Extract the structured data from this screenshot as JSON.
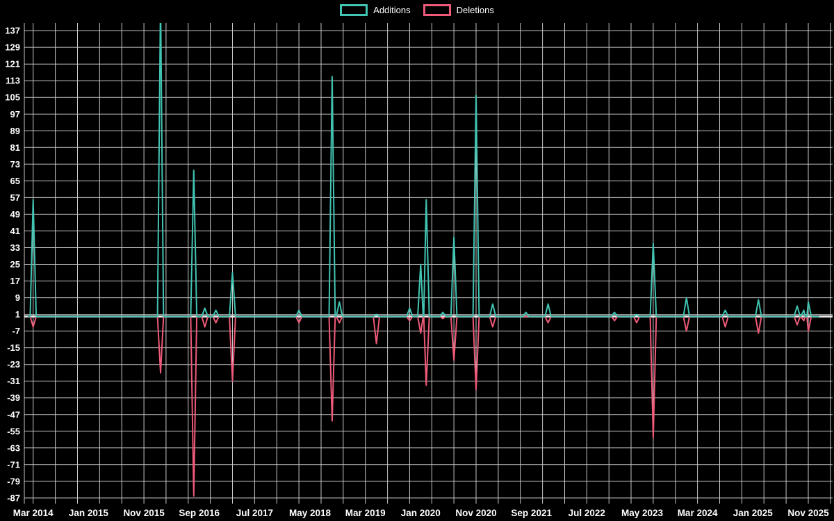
{
  "legend": {
    "additions_label": "Additions",
    "deletions_label": "Deletions"
  },
  "colors": {
    "background": "#000000",
    "additions": "#42c4b2",
    "deletions": "#ee5a78",
    "gridline": "#c9c9c9",
    "zero_line": "#e8e8e8",
    "label_text": "#ffffff"
  },
  "chart_data": {
    "type": "line",
    "title": "",
    "legend_position": "top-center",
    "grid": true,
    "x_axis": {
      "unit": "months-since-Mar-2014",
      "tick_labels": [
        "Mar 2014",
        "Jan 2015",
        "Nov 2015",
        "Sep 2016",
        "Jul 2017",
        "May 2018",
        "Mar 2019",
        "Jan 2020",
        "Nov 2020",
        "Sep 2021",
        "Jul 2022",
        "May 2023",
        "Mar 2024",
        "Jan 2025",
        "Nov 2025"
      ],
      "tick_months": [
        0,
        10,
        20,
        30,
        40,
        50,
        60,
        70,
        80,
        90,
        100,
        110,
        120,
        130,
        140
      ],
      "month_range": [
        -1.6,
        144.4
      ],
      "grid_step_months": 4
    },
    "y_axis": {
      "ticks": [
        137,
        129,
        121,
        113,
        105,
        97,
        89,
        81,
        73,
        65,
        57,
        49,
        41,
        33,
        25,
        17,
        9,
        1,
        -7,
        -15,
        -23,
        -31,
        -39,
        -47,
        -55,
        -63,
        -71,
        -79,
        -87
      ],
      "range": [
        -89.7,
        140.7
      ],
      "zero_baseline": 0
    },
    "series_names": [
      "Additions",
      "Deletions"
    ],
    "points": [
      {
        "month": 0,
        "additions": 56,
        "deletions": -5
      },
      {
        "month": 23,
        "additions": 152,
        "deletions": -27
      },
      {
        "month": 29,
        "additions": 70,
        "deletions": -86
      },
      {
        "month": 31,
        "additions": 4,
        "deletions": -5
      },
      {
        "month": 33,
        "additions": 3,
        "deletions": -3
      },
      {
        "month": 36,
        "additions": 21,
        "deletions": -31
      },
      {
        "month": 48,
        "additions": 3,
        "deletions": -3
      },
      {
        "month": 54,
        "additions": 115,
        "deletions": -50
      },
      {
        "month": 55.3,
        "additions": 7,
        "deletions": -3
      },
      {
        "month": 62,
        "additions": 1,
        "deletions": -13
      },
      {
        "month": 68,
        "additions": 4,
        "deletions": -2
      },
      {
        "month": 70,
        "additions": 25,
        "deletions": -8
      },
      {
        "month": 71,
        "additions": 56,
        "deletions": -33
      },
      {
        "month": 74,
        "additions": 2,
        "deletions": -1
      },
      {
        "month": 76,
        "additions": 38,
        "deletions": -21
      },
      {
        "month": 80,
        "additions": 106,
        "deletions": -35
      },
      {
        "month": 83,
        "additions": 6,
        "deletions": -5
      },
      {
        "month": 89,
        "additions": 2,
        "deletions": 0
      },
      {
        "month": 93,
        "additions": 6,
        "deletions": -3
      },
      {
        "month": 105,
        "additions": 2,
        "deletions": -2
      },
      {
        "month": 109,
        "additions": 1,
        "deletions": -3
      },
      {
        "month": 112,
        "additions": 35,
        "deletions": -58
      },
      {
        "month": 118,
        "additions": 9,
        "deletions": -7
      },
      {
        "month": 125,
        "additions": 3,
        "deletions": -5
      },
      {
        "month": 131,
        "additions": 8,
        "deletions": -8
      },
      {
        "month": 138,
        "additions": 5,
        "deletions": -4
      },
      {
        "month": 139.2,
        "additions": 3,
        "deletions": -2
      },
      {
        "month": 140,
        "additions": 7,
        "deletions": -7
      }
    ]
  }
}
